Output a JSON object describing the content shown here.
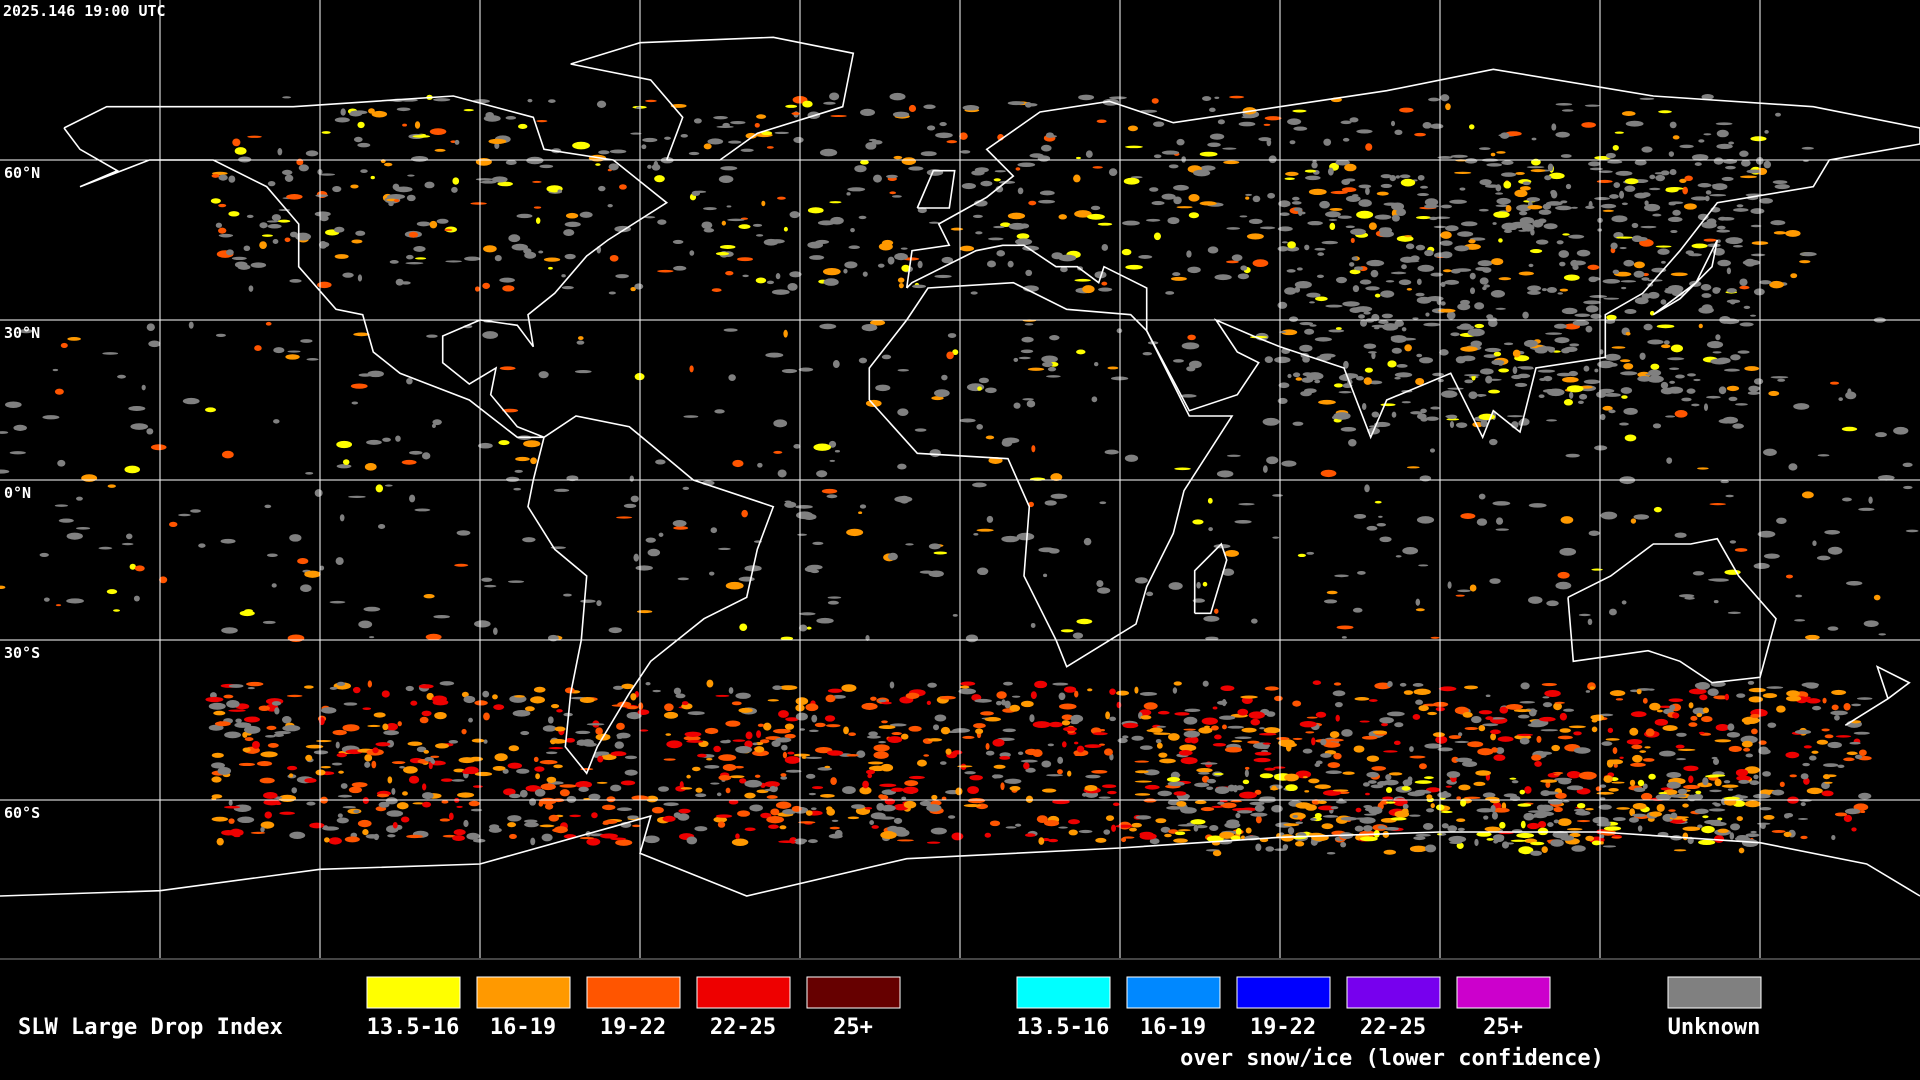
{
  "header": {
    "timestamp": "2025.146 19:00 UTC"
  },
  "grid": {
    "lat_labels": [
      "60°N",
      "30°N",
      "0°N",
      "30°S",
      "60°S"
    ]
  },
  "legend": {
    "title": "SLW Large Drop Index",
    "groups": [
      {
        "items": [
          {
            "label": "13.5-16",
            "color": "#ffff00"
          },
          {
            "label": "16-19",
            "color": "#ff9900"
          },
          {
            "label": "19-22",
            "color": "#ff5500"
          },
          {
            "label": "22-25",
            "color": "#ee0000"
          },
          {
            "label": "25+",
            "color": "#660000"
          }
        ]
      },
      {
        "items": [
          {
            "label": "13.5-16",
            "color": "#00ffff"
          },
          {
            "label": "16-19",
            "color": "#0088ff"
          },
          {
            "label": "19-22",
            "color": "#0000ff"
          },
          {
            "label": "22-25",
            "color": "#7700ee"
          },
          {
            "label": "25+",
            "color": "#cc00cc"
          }
        ]
      }
    ],
    "snow_note": "over snow/ice (lower confidence)",
    "unknown": {
      "label": "Unknown",
      "color": "#808080"
    }
  }
}
